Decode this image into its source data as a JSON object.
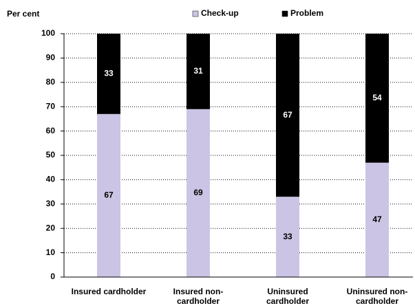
{
  "chart_data": {
    "type": "stacked_bar",
    "y_axis_label": "Per cent",
    "categories": [
      "Insured cardholder",
      "Insured non-cardholder",
      "Uninsured cardholder",
      "Uninsured non-cardholder"
    ],
    "series": [
      {
        "name": "Check-up",
        "color": "#ccc4e4",
        "label_color": "#000000",
        "values": [
          67,
          69,
          33,
          47
        ]
      },
      {
        "name": "Problem",
        "color": "#000000",
        "label_color": "#ffffff",
        "values": [
          33,
          31,
          67,
          54
        ]
      }
    ],
    "ylim": [
      0,
      100
    ],
    "yticks": [
      0,
      10,
      20,
      30,
      40,
      50,
      60,
      70,
      80,
      90,
      100
    ],
    "grid": true,
    "legend": "top"
  }
}
